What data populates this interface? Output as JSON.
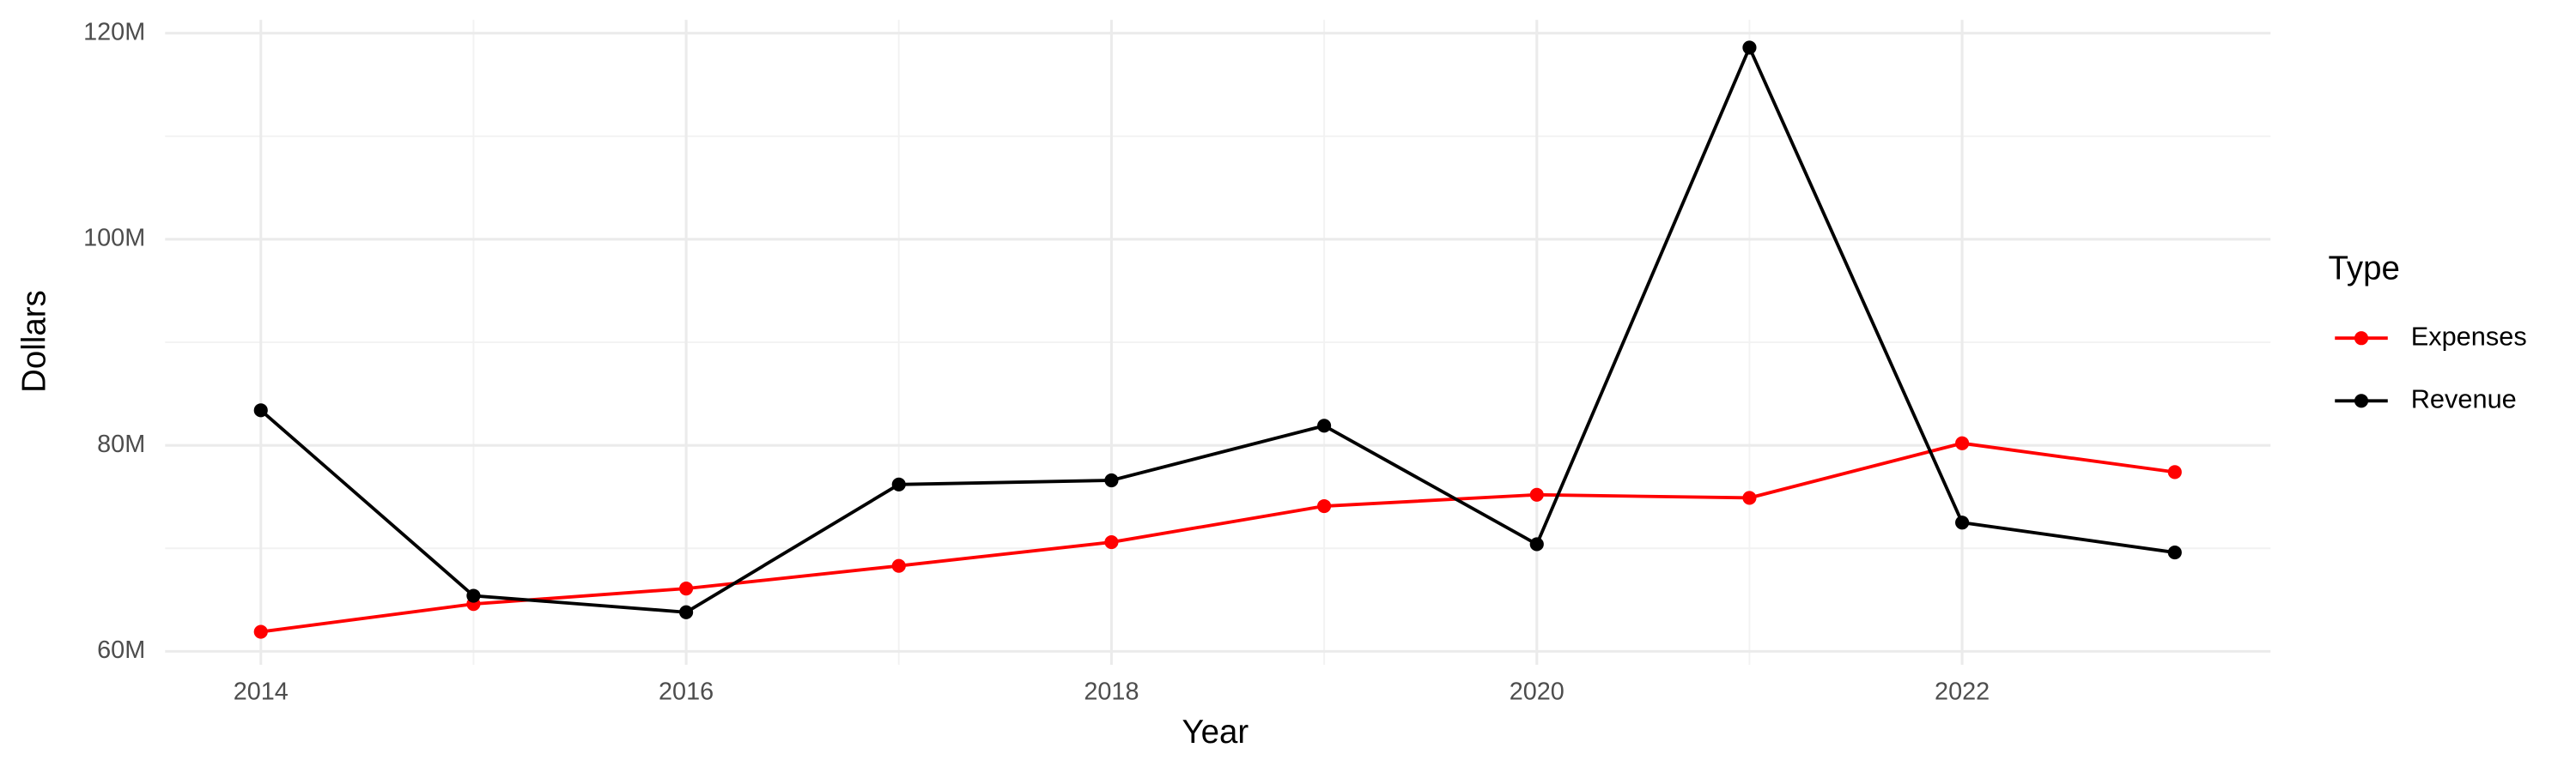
{
  "chart_data": {
    "type": "line",
    "x_label": "Year",
    "y_label": "Dollars",
    "legend_title": "Type",
    "legend_position": "right",
    "grid": true,
    "x": [
      2014,
      2015,
      2016,
      2017,
      2018,
      2019,
      2020,
      2021,
      2022,
      2023
    ],
    "series": [
      {
        "name": "Expenses",
        "color": "#ff0000",
        "values": [
          61900000,
          64600000,
          66100000,
          68300000,
          70600000,
          74100000,
          75200000,
          74900000,
          80200000,
          77400000
        ]
      },
      {
        "name": "Revenue",
        "color": "#000000",
        "values": [
          83400000,
          65400000,
          63800000,
          76200000,
          76600000,
          81900000,
          70400000,
          118600000,
          72500000,
          69600000
        ]
      }
    ],
    "xlim": [
      2013.55,
      2023.45
    ],
    "xticks": [
      2014,
      2016,
      2018,
      2020,
      2022
    ],
    "ylim": [
      58700000,
      121300000
    ],
    "yticks": [
      {
        "value": 60000000,
        "label": "60M"
      },
      {
        "value": 80000000,
        "label": "80M"
      },
      {
        "value": 100000000,
        "label": "100M"
      },
      {
        "value": 120000000,
        "label": "120M"
      }
    ]
  }
}
